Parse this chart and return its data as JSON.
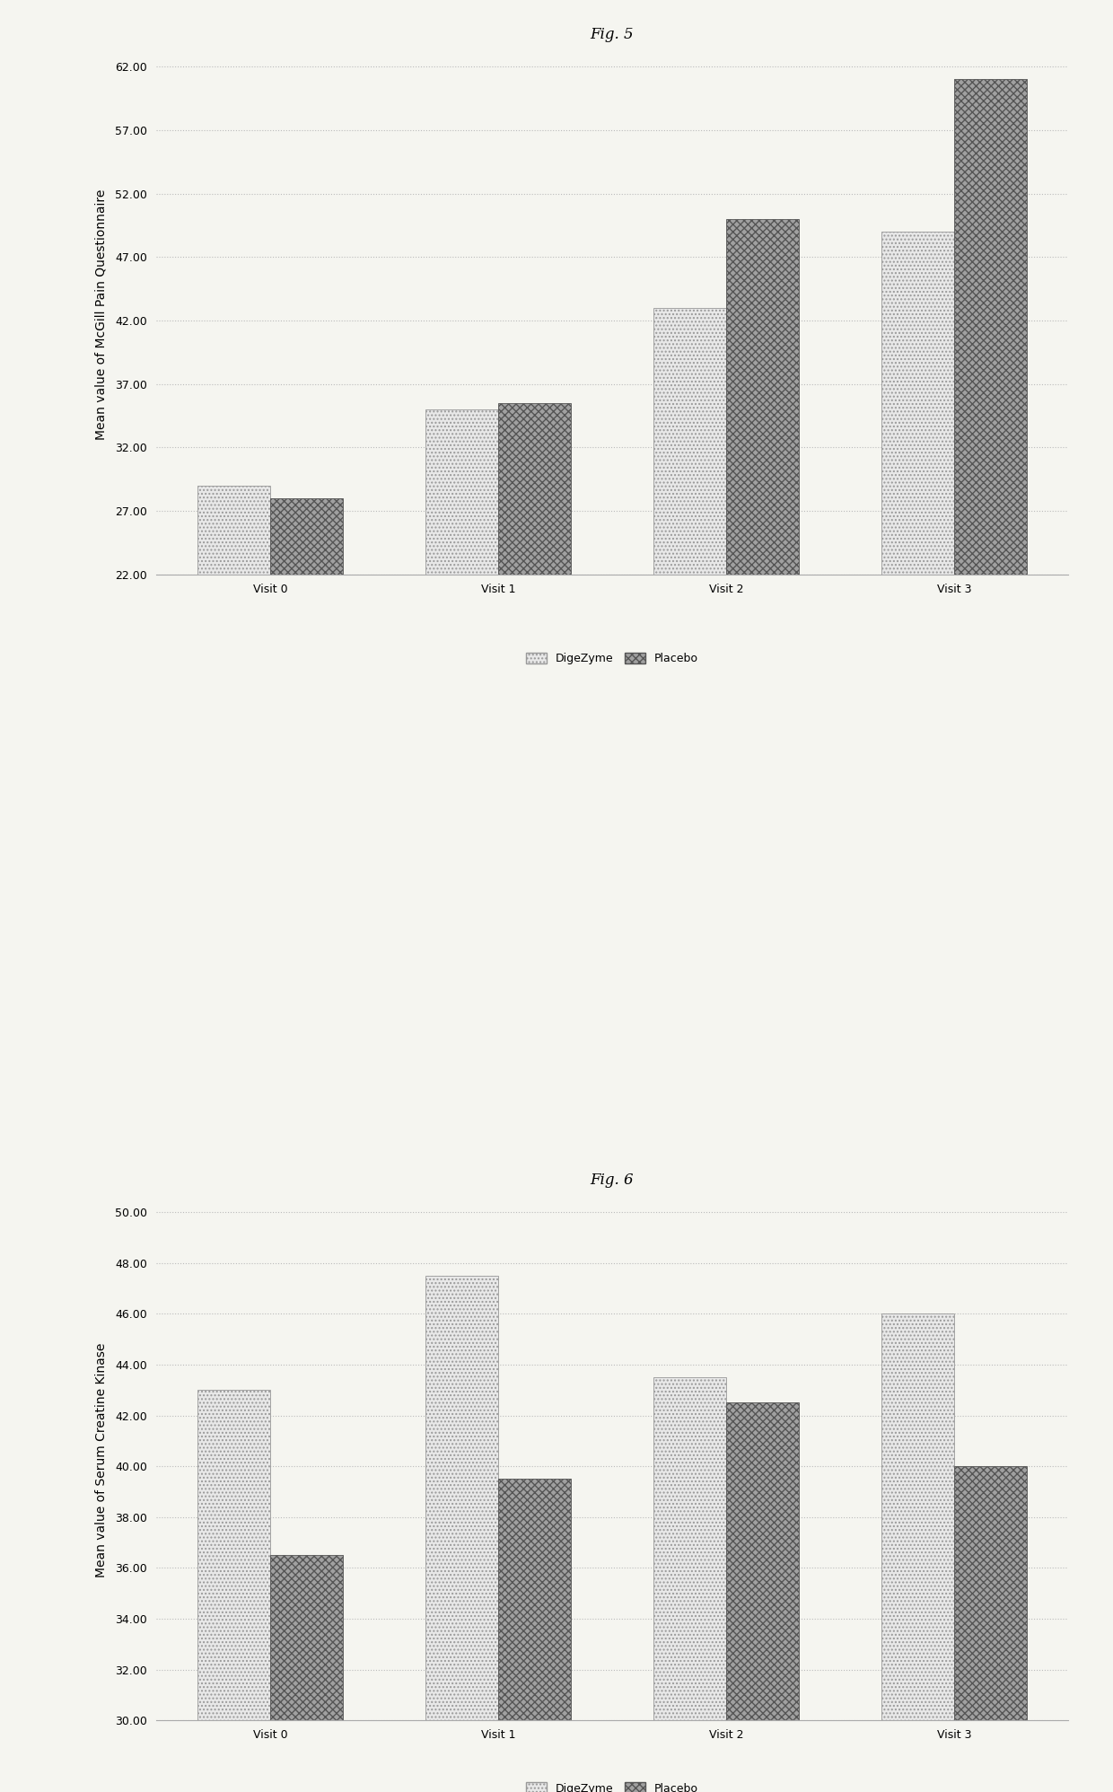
{
  "fig5_title": "Fig. 5",
  "fig6_title": "Fig. 6",
  "categories": [
    "Visit 0",
    "Visit 1",
    "Visit 2",
    "Visit 3"
  ],
  "fig5_ylabel": "Mean value of McGill Pain Questionnaire",
  "fig6_ylabel": "Mean value of Serum Creatine Kinase",
  "fig5_digezyme": [
    29.0,
    35.0,
    43.0,
    49.0
  ],
  "fig5_placebo": [
    28.0,
    35.5,
    50.0,
    61.0
  ],
  "fig5_ylim": [
    22.0,
    63.0
  ],
  "fig5_yticks": [
    22.0,
    27.0,
    32.0,
    37.0,
    42.0,
    47.0,
    52.0,
    57.0,
    62.0
  ],
  "fig6_digezyme": [
    43.0,
    47.5,
    43.5,
    46.0
  ],
  "fig6_placebo": [
    36.5,
    39.5,
    42.5,
    40.0
  ],
  "fig6_ylim": [
    30.0,
    50.5
  ],
  "fig6_yticks": [
    30.0,
    32.0,
    34.0,
    36.0,
    38.0,
    40.0,
    42.0,
    44.0,
    46.0,
    48.0,
    50.0
  ],
  "color_digezyme": "#e8e8e8",
  "color_placebo": "#a0a0a0",
  "hatch_digezyme": "....",
  "hatch_placebo": "xxxx",
  "bar_width": 0.32,
  "legend_labels": [
    "DigeZyme",
    "Placebo"
  ],
  "background_color": "#f5f5f0",
  "title_fontsize": 12,
  "axis_label_fontsize": 10,
  "tick_fontsize": 9,
  "legend_fontsize": 9
}
